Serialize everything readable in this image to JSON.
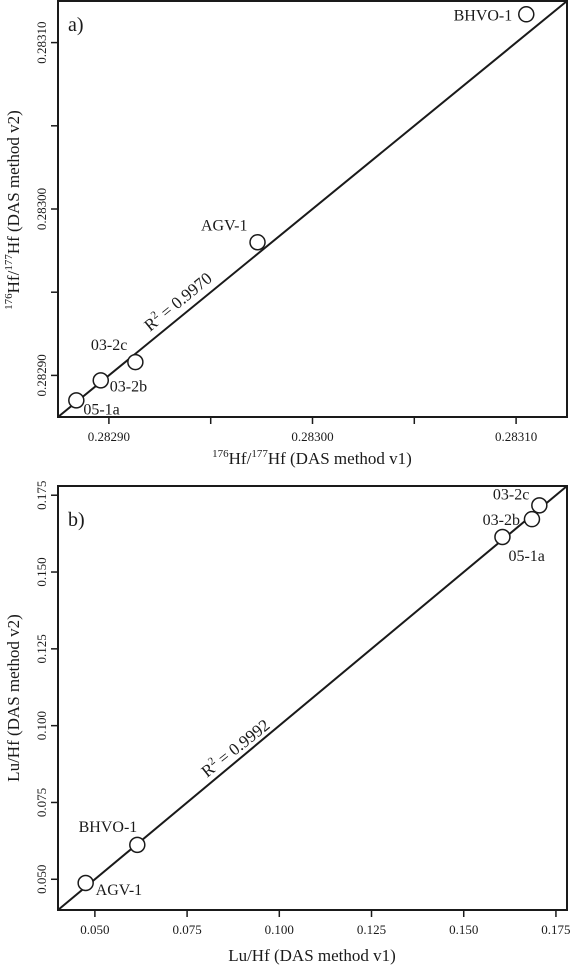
{
  "chart_data": [
    {
      "type": "scatter",
      "panel_label": "a)",
      "xlabel_iso_top": "176",
      "xlabel_hf": "Hf/",
      "xlabel_iso_bottom": "177",
      "xlabel_tail": "Hf (DAS method v1)",
      "ylabel_iso_top": "176",
      "ylabel_hf": "Hf/",
      "ylabel_iso_bottom": "177",
      "ylabel_tail": "Hf (DAS method v2)",
      "xlim": [
        0.282875,
        0.283125
      ],
      "ylim": [
        0.282875,
        0.283125
      ],
      "xticks": [
        0.2829,
        0.283,
        0.2831
      ],
      "xtick_labels": [
        "0.28290",
        "0.28300",
        "0.28310"
      ],
      "yticks": [
        0.2829,
        0.283,
        0.2831
      ],
      "ytick_labels": [
        "0.28290",
        "0.28300",
        "0.28310"
      ],
      "r2_prefix": "R",
      "r2_exp": "2",
      "r2_value": " = 0.9970",
      "fit_line": [
        [
          0.282875,
          0.282875
        ],
        [
          0.283125,
          0.283125
        ]
      ],
      "points": [
        {
          "label": "BHVO-1",
          "x": 0.283105,
          "y": 0.283117
        },
        {
          "label": "AGV-1",
          "x": 0.282973,
          "y": 0.28298
        },
        {
          "label": "03-2c",
          "x": 0.282913,
          "y": 0.282908
        },
        {
          "label": "03-2b",
          "x": 0.282896,
          "y": 0.282897
        },
        {
          "label": "05-1a",
          "x": 0.282884,
          "y": 0.282885
        }
      ]
    },
    {
      "type": "scatter",
      "panel_label": "b)",
      "xlabel": "Lu/Hf (DAS method v1)",
      "ylabel": "Lu/Hf (DAS method v2)",
      "xlim": [
        0.04,
        0.178
      ],
      "ylim": [
        0.04,
        0.178
      ],
      "xticks": [
        0.05,
        0.075,
        0.1,
        0.125,
        0.15,
        0.175
      ],
      "xtick_labels": [
        "0.050",
        "0.075",
        "0.100",
        "0.125",
        "0.150",
        "0.175"
      ],
      "yticks": [
        0.05,
        0.075,
        0.1,
        0.125,
        0.15,
        0.175
      ],
      "ytick_labels": [
        "0.050",
        "0.075",
        "0.100",
        "0.125",
        "0.150",
        "0.175"
      ],
      "r2_prefix": "R",
      "r2_exp": "2",
      "r2_value": " = 0.9992",
      "fit_line": [
        [
          0.04,
          0.04
        ],
        [
          0.178,
          0.178
        ]
      ],
      "points": [
        {
          "label": "03-2c",
          "x": 0.1705,
          "y": 0.1717
        },
        {
          "label": "03-2b",
          "x": 0.1685,
          "y": 0.1672
        },
        {
          "label": "05-1a",
          "x": 0.1605,
          "y": 0.1614
        },
        {
          "label": "BHVO-1",
          "x": 0.0615,
          "y": 0.0612
        },
        {
          "label": "AGV-1",
          "x": 0.0475,
          "y": 0.0488
        }
      ]
    }
  ]
}
